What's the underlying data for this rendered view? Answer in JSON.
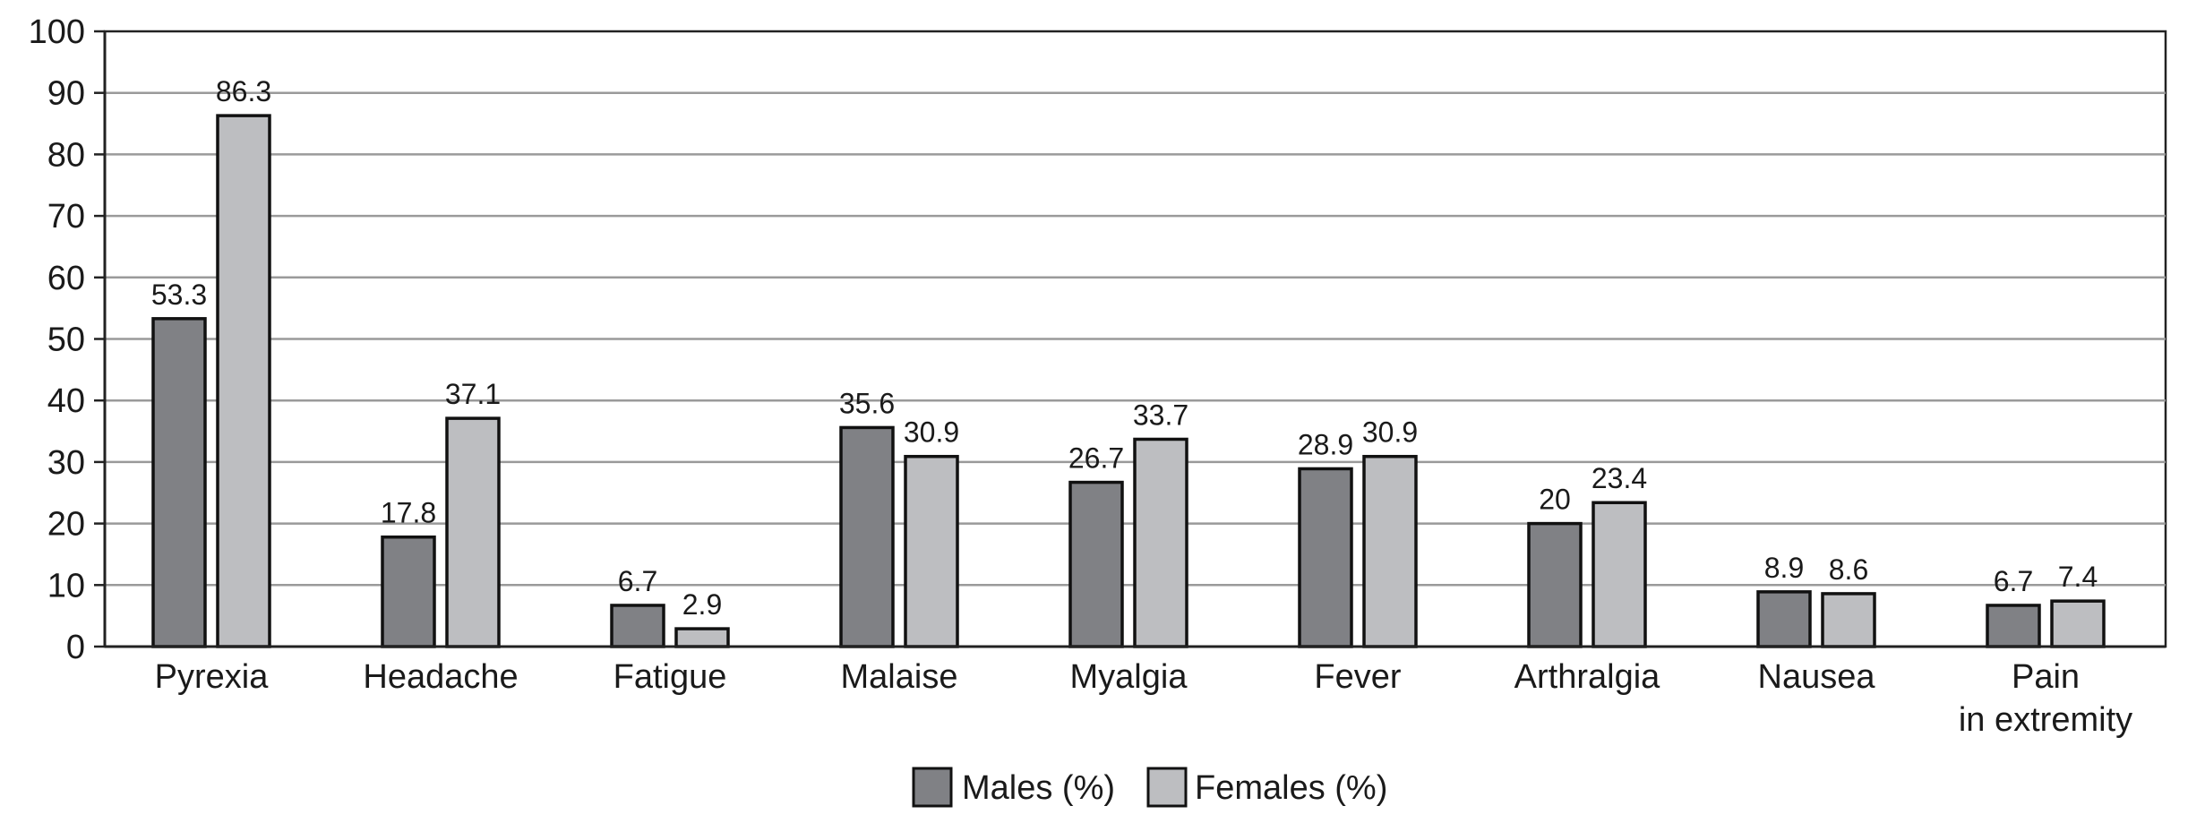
{
  "chart_data": {
    "type": "bar",
    "categories": [
      "Pyrexia",
      "Headache",
      "Fatigue",
      "Malaise",
      "Myalgia",
      "Fever",
      "Arthralgia",
      "Nausea",
      "Pain in extremity"
    ],
    "category_lines": [
      [
        "Pyrexia"
      ],
      [
        "Headache"
      ],
      [
        "Fatigue"
      ],
      [
        "Malaise"
      ],
      [
        "Myalgia"
      ],
      [
        "Fever"
      ],
      [
        "Arthralgia"
      ],
      [
        "Nausea"
      ],
      [
        "Pain",
        "in extremity"
      ]
    ],
    "series": [
      {
        "name": "Males (%)",
        "values": [
          53.3,
          17.8,
          6.7,
          35.6,
          26.7,
          28.9,
          20,
          8.9,
          6.7
        ],
        "labels": [
          "53.3",
          "17.8",
          "6.7",
          "35.6",
          "26.7",
          "28.9",
          "20",
          "8.9",
          "6.7"
        ],
        "color": "#808185"
      },
      {
        "name": "Females (%)",
        "values": [
          86.3,
          37.1,
          2.9,
          30.9,
          33.7,
          30.9,
          23.4,
          8.6,
          7.4
        ],
        "labels": [
          "86.3",
          "37.1",
          "2.9",
          "30.9",
          "33.7",
          "30.9",
          "23.4",
          "8.6",
          "7.4"
        ],
        "color": "#bdbec1"
      }
    ],
    "ylim": [
      0,
      100
    ],
    "yticks": [
      0,
      10,
      20,
      30,
      40,
      50,
      60,
      70,
      80,
      90,
      100
    ],
    "grid": true,
    "legend_position": "bottom-center",
    "title": "",
    "xlabel": "",
    "ylabel": ""
  }
}
